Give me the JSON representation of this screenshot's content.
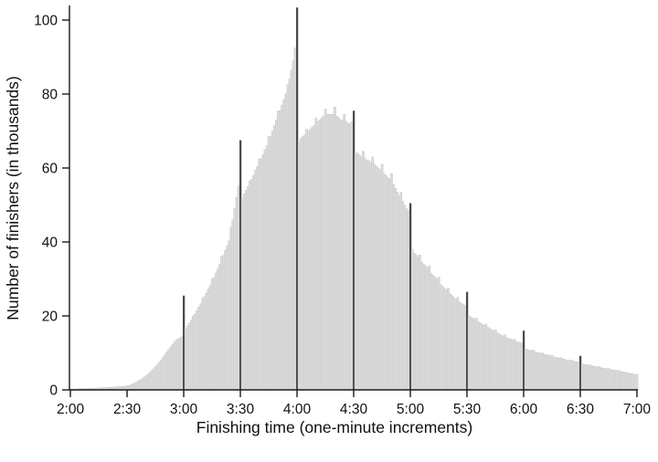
{
  "chart_data": {
    "type": "bar",
    "title": "",
    "xlabel": "Finishing time (one-minute increments)",
    "ylabel": "Number of finishers (in thousands)",
    "values_unit": "thousands of finishers per one-minute bin",
    "x_start_minute": 120,
    "x_end_minute": 420,
    "bin_width_minutes": 1,
    "x_tick_minutes": [
      120,
      150,
      180,
      210,
      240,
      270,
      300,
      330,
      360,
      390,
      420
    ],
    "x_tick_labels": [
      "2:00",
      "2:30",
      "3:00",
      "3:30",
      "4:00",
      "4:30",
      "5:00",
      "5:30",
      "6:00",
      "6:30",
      "7:00"
    ],
    "y_ticks": [
      0,
      20,
      40,
      60,
      80,
      100
    ],
    "ylim": [
      0,
      104
    ],
    "grid": false,
    "legend": null,
    "spike_minutes": [
      180,
      210,
      240,
      270,
      300,
      330,
      360,
      390
    ],
    "colors": {
      "bar": "#dcdcdc",
      "bar_edge": "#bdbdbd",
      "spike": "#4a4a4a",
      "axis": "#1a1a1a",
      "text": "#111111"
    },
    "values": [
      0.2,
      0.2,
      0.2,
      0.2,
      0.3,
      0.3,
      0.3,
      0.3,
      0.3,
      0.4,
      0.4,
      0.4,
      0.4,
      0.5,
      0.5,
      0.5,
      0.5,
      0.6,
      0.6,
      0.6,
      0.7,
      0.7,
      0.7,
      0.8,
      0.8,
      0.8,
      0.9,
      0.9,
      0.9,
      1.0,
      1.1,
      1.2,
      1.4,
      1.6,
      1.8,
      2.1,
      2.4,
      2.7,
      3.0,
      3.4,
      3.8,
      4.2,
      4.7,
      5.2,
      5.7,
      6.3,
      6.9,
      7.5,
      8.1,
      8.8,
      9.5,
      10.2,
      10.9,
      11.6,
      12.3,
      12.9,
      13.4,
      13.8,
      14.1,
      14.4,
      25.5,
      16.5,
      17.3,
      18.1,
      18.9,
      20.0,
      20.6,
      21.5,
      22.4,
      23.3,
      24.8,
      25.2,
      26.2,
      27.2,
      28.2,
      30.0,
      30.4,
      31.5,
      32.7,
      33.9,
      36.0,
      36.4,
      37.7,
      39.0,
      40.3,
      44.0,
      46.0,
      49.0,
      52.0,
      55.0,
      67.5,
      52.0,
      53.0,
      54.0,
      55.0,
      56.5,
      57.0,
      58.0,
      59.5,
      60.5,
      62.5,
      62.5,
      63.5,
      65.0,
      66.0,
      68.5,
      68.5,
      70.0,
      71.5,
      73.0,
      75.5,
      75.5,
      77.0,
      78.5,
      80.0,
      82.5,
      84.0,
      86.5,
      89.0,
      92.5,
      103.4,
      67.0,
      68.0,
      68.5,
      69.0,
      70.5,
      70.0,
      70.5,
      71.0,
      71.5,
      73.5,
      72.5,
      73.0,
      73.5,
      74.0,
      76.0,
      74.5,
      74.5,
      74.5,
      74.5,
      76.5,
      74.0,
      73.5,
      73.0,
      73.0,
      74.5,
      72.5,
      72.0,
      72.0,
      72.5,
      75.5,
      64.0,
      64.0,
      63.5,
      63.0,
      64.5,
      62.5,
      62.0,
      62.0,
      61.5,
      63.0,
      61.0,
      60.5,
      60.0,
      59.5,
      61.0,
      58.5,
      58.0,
      57.5,
      57.0,
      58.5,
      55.5,
      54.5,
      53.5,
      52.5,
      53.5,
      51.0,
      50.0,
      49.0,
      48.5,
      50.5,
      38.0,
      37.0,
      36.5,
      36.0,
      36.5,
      34.5,
      34.0,
      33.5,
      33.0,
      33.5,
      31.5,
      31.0,
      30.5,
      30.0,
      30.5,
      28.5,
      28.0,
      27.5,
      27.0,
      27.5,
      26.0,
      25.5,
      25.0,
      24.5,
      25.0,
      23.8,
      23.4,
      23.0,
      22.8,
      26.5,
      20.0,
      19.7,
      19.4,
      19.1,
      19.4,
      18.4,
      18.1,
      17.8,
      17.5,
      17.8,
      16.9,
      16.6,
      16.3,
      16.0,
      16.3,
      15.4,
      15.1,
      14.8,
      14.6,
      14.9,
      14.1,
      13.9,
      13.7,
      13.5,
      13.7,
      13.1,
      12.9,
      12.8,
      12.7,
      16.0,
      11.0,
      10.9,
      10.7,
      10.6,
      10.8,
      10.3,
      10.1,
      10.0,
      9.9,
      10.0,
      9.6,
      9.5,
      9.4,
      9.2,
      9.4,
      8.9,
      8.8,
      8.7,
      8.6,
      8.7,
      8.3,
      8.2,
      8.1,
      8.0,
      8.1,
      7.8,
      7.7,
      7.6,
      7.5,
      9.2,
      7.0,
      6.9,
      6.8,
      6.7,
      6.8,
      6.5,
      6.4,
      6.3,
      6.2,
      6.3,
      6.0,
      5.9,
      5.8,
      5.7,
      5.8,
      5.5,
      5.4,
      5.3,
      5.2,
      5.3,
      5.0,
      4.9,
      4.8,
      4.7,
      4.7,
      4.5,
      4.4,
      4.3,
      4.2,
      4.2
    ]
  }
}
